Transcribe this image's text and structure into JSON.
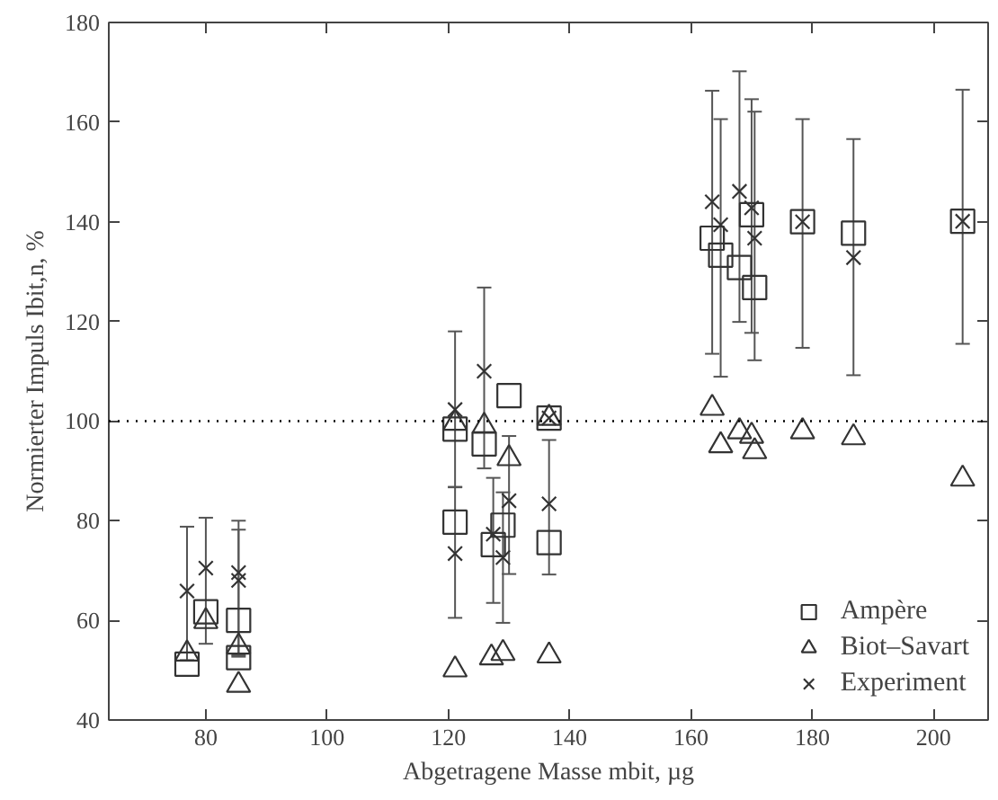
{
  "chart_data": {
    "type": "scatter",
    "xlabel": "Abgetragene Masse mbit, µg",
    "ylabel": "Normierter Impuls Ibit,n, %",
    "xlim": [
      64,
      209
    ],
    "ylim": [
      40,
      180
    ],
    "xticks": [
      80,
      100,
      120,
      140,
      160,
      180,
      200
    ],
    "yticks": [
      40,
      60,
      80,
      100,
      120,
      140,
      160,
      180
    ],
    "grid": false,
    "legend": "bottom right",
    "ref_lines": [
      {
        "axis": "y",
        "value": 100,
        "line_style": "dotted",
        "color": "#000000"
      }
    ],
    "series": [
      {
        "name": "Ampère",
        "color": "#333333",
        "marker": "square",
        "x": [
          76.9,
          80.0,
          85.4,
          85.4,
          121.1,
          121.1,
          125.9,
          127.4,
          129.0,
          130.0,
          136.6,
          136.6,
          163.5,
          164.9,
          168.0,
          170.0,
          170.5,
          178.4,
          186.8,
          204.8
        ],
        "values": [
          51.2,
          61.7,
          60.0,
          52.5,
          98.4,
          79.7,
          95.4,
          75.2,
          79.1,
          105.1,
          75.6,
          100.6,
          136.7,
          133.3,
          130.8,
          141.4,
          126.8,
          140.0,
          137.7,
          140.1
        ]
      },
      {
        "name": "Biot–Savart",
        "color": "#333333",
        "marker": "triangle",
        "x": [
          76.9,
          80.0,
          85.4,
          85.4,
          121.1,
          121.1,
          125.9,
          127.1,
          130.0,
          129.0,
          136.6,
          136.6,
          163.5,
          164.9,
          168.0,
          170.0,
          170.5,
          178.4,
          186.8,
          204.8
        ],
        "values": [
          53.3,
          59.8,
          54.7,
          47.0,
          99.6,
          50.1,
          99.0,
          52.5,
          92.5,
          53.4,
          52.9,
          100.6,
          102.6,
          95.1,
          97.9,
          97.0,
          93.9,
          97.9,
          96.7,
          88.4
        ]
      },
      {
        "name": "Experiment",
        "color": "#333333",
        "marker": "cross",
        "x": [
          76.9,
          80.0,
          85.4,
          85.4,
          121.1,
          121.1,
          125.9,
          127.4,
          129.0,
          130.0,
          136.6,
          136.6,
          163.5,
          164.9,
          168.0,
          170.0,
          170.5,
          178.4,
          186.8,
          204.8
        ],
        "values": [
          65.9,
          70.5,
          69.6,
          68.0,
          102.3,
          73.4,
          110.0,
          77.3,
          72.6,
          84.0,
          83.4,
          100.6,
          144.0,
          139.4,
          146.1,
          142.8,
          136.7,
          140.0,
          132.8,
          140.1
        ],
        "errors": [
          [
            52,
            78.8
          ],
          [
            55.3,
            80.6
          ],
          [
            52.7,
            80
          ],
          [
            53,
            78.2
          ],
          [
            86.7,
            118.0
          ],
          [
            60.5,
            86.8
          ],
          [
            90.5,
            126.8
          ],
          [
            63.5,
            88.6
          ],
          [
            59.5,
            85.7
          ],
          [
            69.3,
            97.0
          ],
          [
            69.2,
            96.2
          ],
          null,
          [
            113.5,
            166.3
          ],
          [
            108.9,
            160.6
          ],
          [
            119.9,
            170.2
          ],
          [
            117.7,
            164.6
          ],
          [
            112.2,
            162.1
          ],
          [
            114.7,
            160.6
          ],
          [
            109.2,
            156.6
          ],
          [
            115.5,
            166.5
          ]
        ]
      }
    ]
  }
}
